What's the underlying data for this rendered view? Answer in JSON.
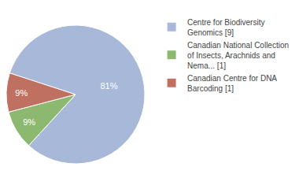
{
  "chart_data": {
    "type": "pie",
    "categories": [
      "Centre for Biodiversity\nGenomics [9]",
      "Canadian National Collection\nof Insects, Arachnids and\nNema... [1]",
      "Canadian Centre for DNA\nBarcoding [1]"
    ],
    "values": [
      81,
      9,
      9
    ],
    "value_labels": [
      "81%",
      "9%",
      "9%"
    ],
    "colors": [
      "#a8b8d8",
      "#8db870",
      "#c07060"
    ],
    "data_labels": true,
    "legend": "right"
  }
}
